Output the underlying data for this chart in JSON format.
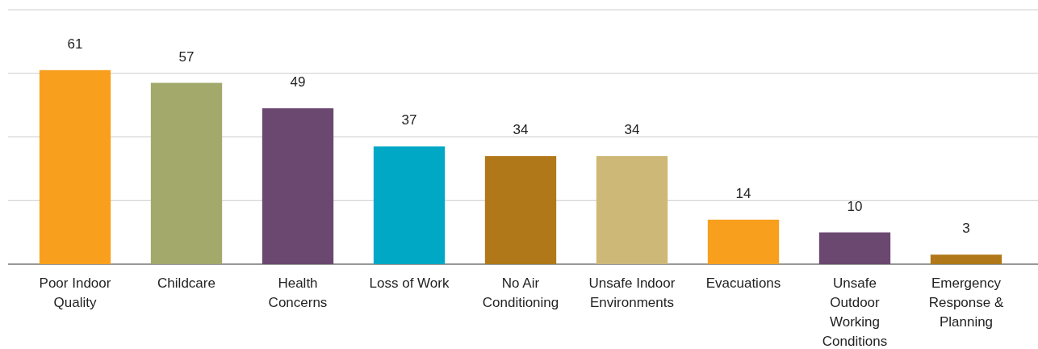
{
  "chart_data": {
    "type": "bar",
    "categories": [
      "Poor Indoor Quality",
      "Childcare",
      "Health Concerns",
      "Loss of Work",
      "No Air Conditioning",
      "Unsafe Indoor Environments",
      "Evacuations",
      "Unsafe Outdoor Working Conditions",
      "Emergency Response & Planning"
    ],
    "values": [
      61,
      57,
      49,
      37,
      34,
      34,
      14,
      10,
      3
    ],
    "colors": [
      "#f8a01e",
      "#a3a96b",
      "#6b4870",
      "#00a8c6",
      "#b07818",
      "#cdb878",
      "#f8a01e",
      "#6b4870",
      "#b07818"
    ],
    "ylim": [
      0,
      80
    ],
    "yticks": [
      {
        "value": 0,
        "label": null
      },
      {
        "value": 20,
        "label": null
      },
      {
        "value": 40,
        "label": null
      },
      {
        "value": 60,
        "label": null
      },
      {
        "value": 80,
        "label": null
      }
    ],
    "grid": "y",
    "tick_labels": "x",
    "data_labels": true
  }
}
